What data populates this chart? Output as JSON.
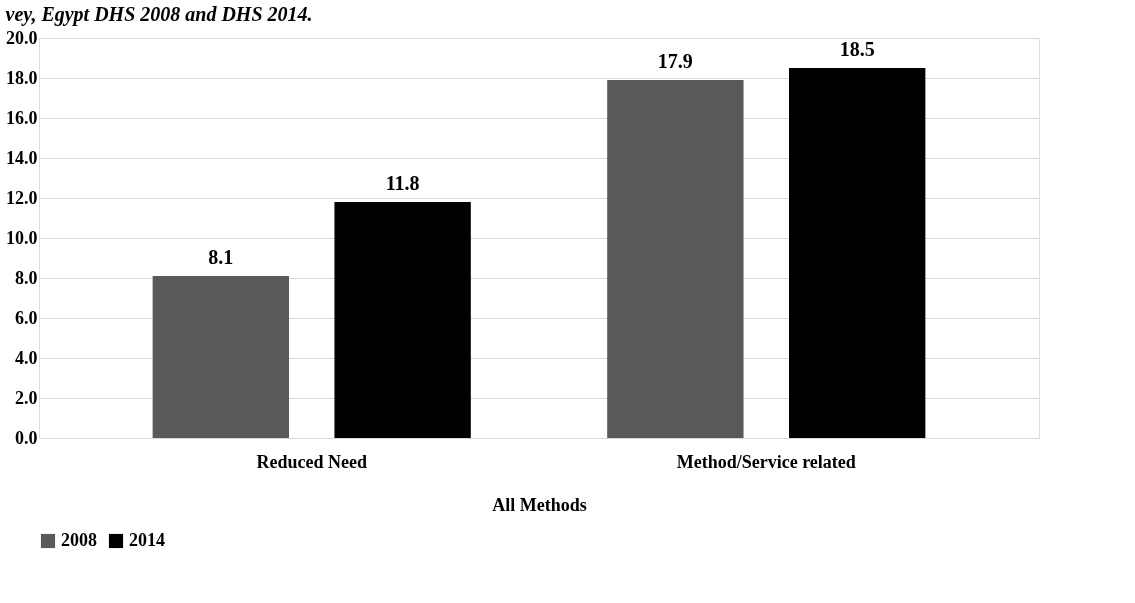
{
  "chart_data": {
    "type": "bar",
    "title": "vey, Egypt DHS 2008 and DHS 2014.",
    "categories": [
      "Reduced Need",
      "Method/Service related"
    ],
    "xlabel": "All Methods",
    "series": [
      {
        "name": "2008",
        "color": "#595959",
        "values": [
          8.1,
          17.9
        ]
      },
      {
        "name": "2014",
        "color": "#000000",
        "values": [
          11.8,
          18.5
        ]
      }
    ],
    "ylim": [
      0,
      20
    ],
    "yticks": [
      {
        "value": 0,
        "label": "0.0"
      },
      {
        "value": 2,
        "label": "2.0"
      },
      {
        "value": 4,
        "label": "4.0"
      },
      {
        "value": 6,
        "label": "6.0"
      },
      {
        "value": 8,
        "label": "8.0"
      },
      {
        "value": 10,
        "label": "10.0"
      },
      {
        "value": 12,
        "label": "12.0"
      },
      {
        "value": 14,
        "label": "14.0"
      },
      {
        "value": 16,
        "label": "16.0"
      },
      {
        "value": 18,
        "label": "18.0"
      },
      {
        "value": 20,
        "label": "20.0"
      }
    ],
    "grid": "y",
    "legend": "bottom",
    "data_labels": true
  }
}
